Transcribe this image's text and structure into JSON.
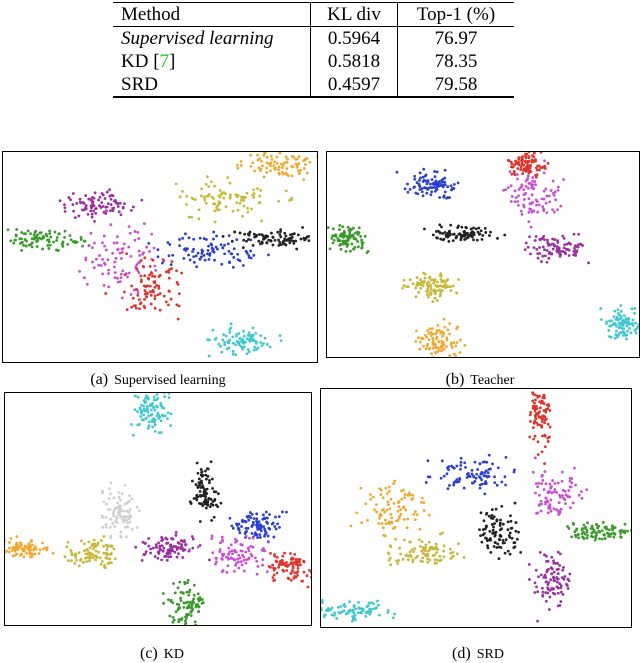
{
  "table": {
    "header": [
      "Method",
      "KL div",
      "Top-1 (%)"
    ],
    "rows": [
      [
        "Supervised learning",
        "0.5964",
        "76.97"
      ],
      [
        [
          "KD [",
          "7",
          "]"
        ],
        "0.5818",
        "78.35"
      ],
      [
        "SRD",
        "0.4597",
        "79.58"
      ]
    ]
  },
  "figures": [
    {
      "label": "(a)",
      "caption": "Supervised learning"
    },
    {
      "label": "(b)",
      "caption": "Teacher"
    },
    {
      "label": "(c)",
      "caption": "KD"
    },
    {
      "label": "(d)",
      "caption": "SRD"
    }
  ]
}
